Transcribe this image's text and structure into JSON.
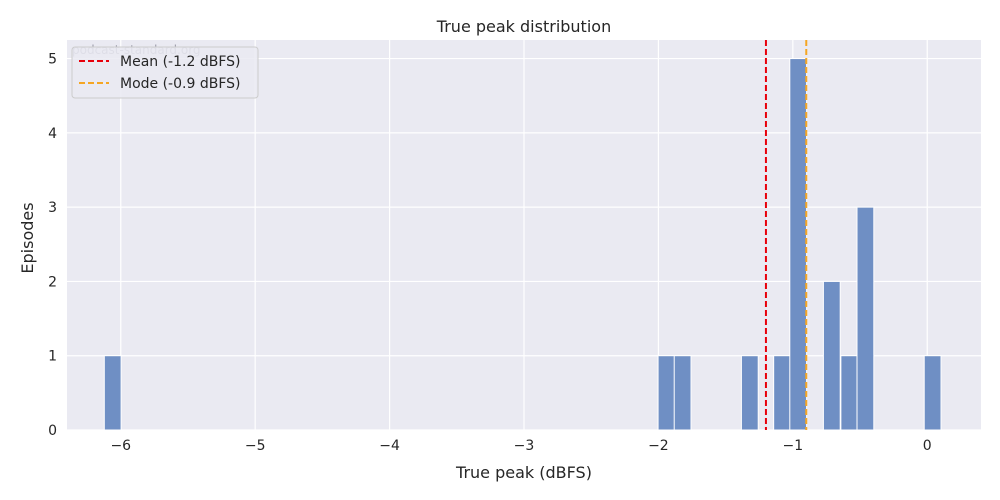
{
  "chart_data": {
    "type": "bar",
    "title": "True peak distribution",
    "xlabel": "True peak (dBFS)",
    "ylabel": "Episodes",
    "watermark": "podcast-standard.org",
    "xlim": [
      -6.4,
      0.4
    ],
    "ylim": [
      0,
      5.25
    ],
    "xticks": [
      -6,
      -5,
      -4,
      -3,
      -2,
      -1,
      0
    ],
    "xtick_labels": [
      "−6",
      "−5",
      "−4",
      "−3",
      "−2",
      "−1",
      "0"
    ],
    "yticks": [
      0,
      1,
      2,
      3,
      4,
      5
    ],
    "ytick_labels": [
      "0",
      "1",
      "2",
      "3",
      "4",
      "5"
    ],
    "grid": true,
    "bin_width": 0.125,
    "bars": [
      {
        "x": -6.06,
        "value": 1
      },
      {
        "x": -1.94,
        "value": 1
      },
      {
        "x": -1.82,
        "value": 1
      },
      {
        "x": -1.32,
        "value": 1
      },
      {
        "x": -1.08,
        "value": 1
      },
      {
        "x": -0.96,
        "value": 5
      },
      {
        "x": -0.71,
        "value": 2
      },
      {
        "x": -0.58,
        "value": 1
      },
      {
        "x": -0.46,
        "value": 3
      },
      {
        "x": 0.04,
        "value": 1
      }
    ],
    "reference_lines": [
      {
        "name": "Mean (-1.2 dBFS)",
        "x": -1.2,
        "color": "#e8000b"
      },
      {
        "name": "Mode (-0.9 dBFS)",
        "x": -0.9,
        "color": "#f5a623"
      }
    ],
    "legend_position": "top-left",
    "colors": {
      "bar": "#6f8fc4",
      "bar_stroke": "#ffffff",
      "plot_bg": "#eaeaf2",
      "grid": "#ffffff"
    }
  }
}
